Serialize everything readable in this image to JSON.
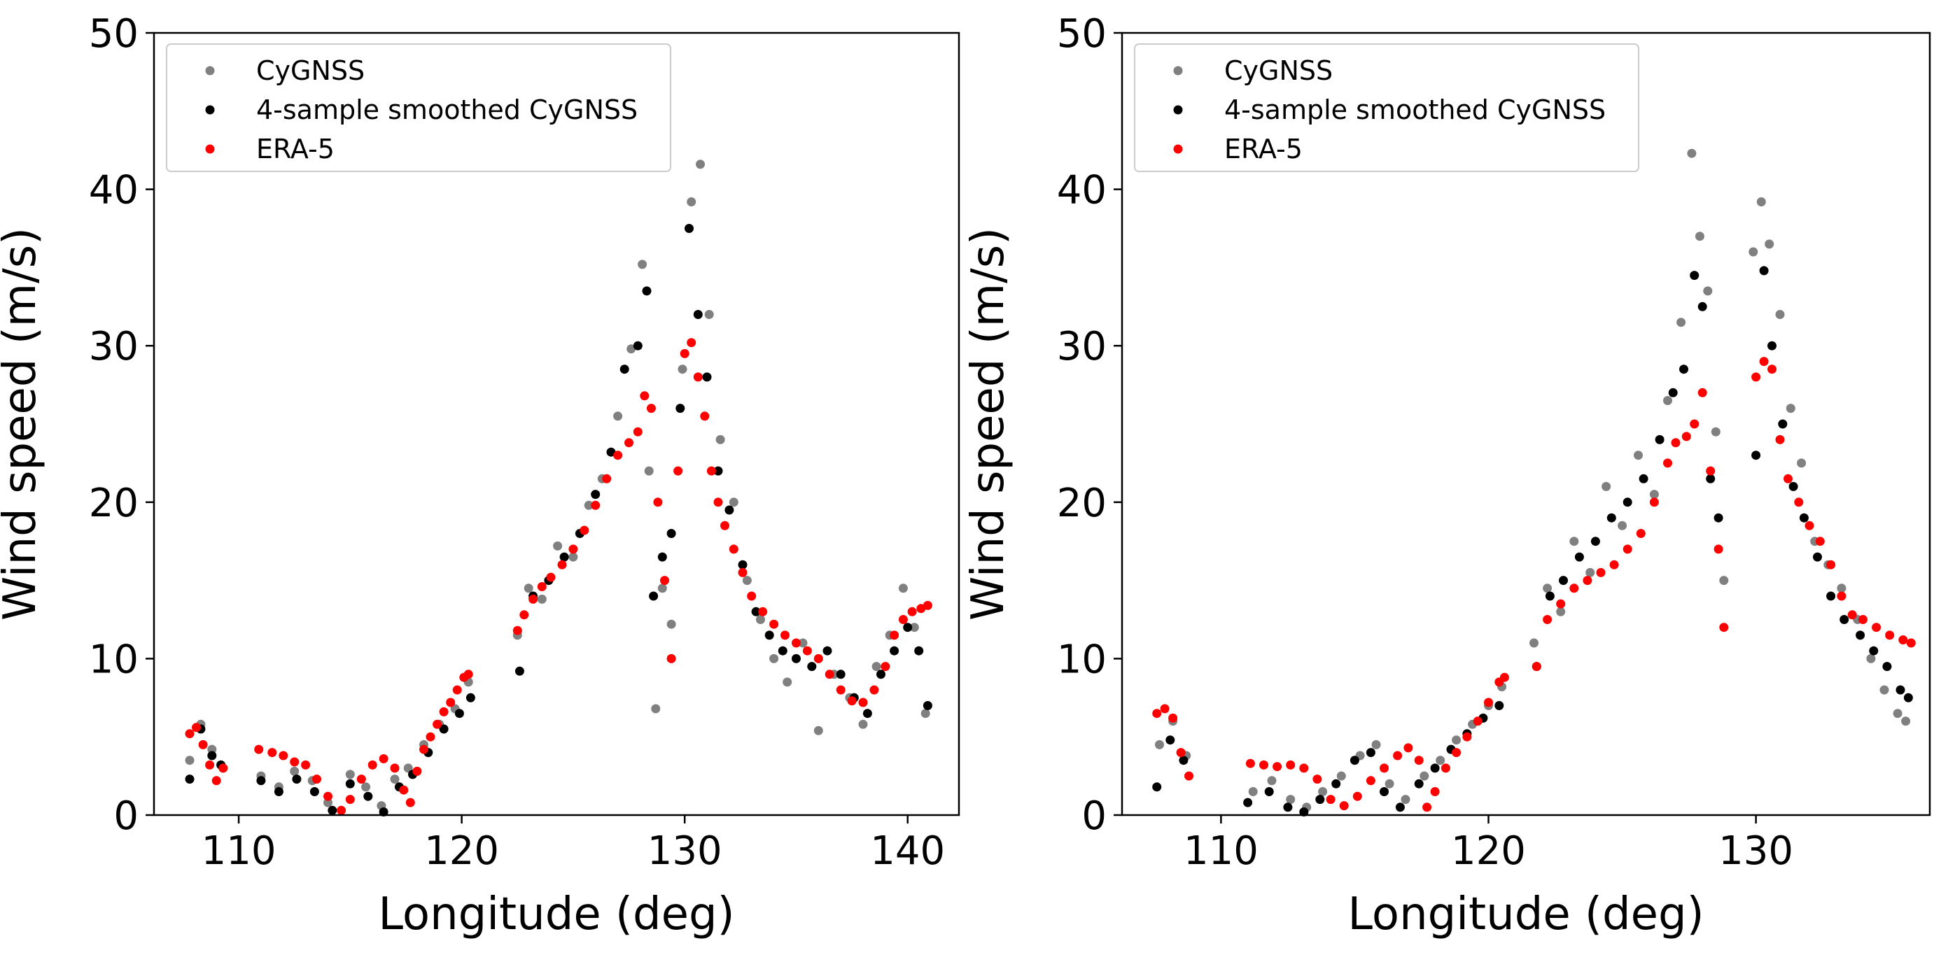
{
  "chart_data": [
    {
      "type": "scatter",
      "xlabel": "Longitude (deg)",
      "ylabel": "Wind speed (m/s)",
      "xlim": [
        106.2,
        142.3
      ],
      "ylim": [
        0,
        50
      ],
      "xticks": [
        110,
        120,
        130,
        140
      ],
      "yticks": [
        0,
        10,
        20,
        30,
        40,
        50
      ],
      "legend_position": "top-left",
      "series": [
        {
          "name": "CyGNSS",
          "color": "#808080",
          "x": [
            107.8,
            108.3,
            108.8,
            109.3,
            111.0,
            111.8,
            112.5,
            113.3,
            114.0,
            115.0,
            115.7,
            116.4,
            117.0,
            117.6,
            118.3,
            119.0,
            119.7,
            120.3,
            122.5,
            123.0,
            123.6,
            124.3,
            125.0,
            125.7,
            126.3,
            127.0,
            127.6,
            128.1,
            128.4,
            128.7,
            129.0,
            129.4,
            129.9,
            130.3,
            130.7,
            131.1,
            131.6,
            132.2,
            132.8,
            133.4,
            134.0,
            134.6,
            135.3,
            136.0,
            136.7,
            137.4,
            138.0,
            138.6,
            139.2,
            139.8,
            140.3,
            140.8
          ],
          "y": [
            3.5,
            5.8,
            4.2,
            3.0,
            2.5,
            1.8,
            2.8,
            2.2,
            0.8,
            2.6,
            1.8,
            0.6,
            2.3,
            3.0,
            4.5,
            5.8,
            6.8,
            8.5,
            11.5,
            14.5,
            13.8,
            17.2,
            16.5,
            19.8,
            21.5,
            25.5,
            29.8,
            35.2,
            22.0,
            6.8,
            14.5,
            12.2,
            28.5,
            39.2,
            41.6,
            32.0,
            24.0,
            20.0,
            15.0,
            12.5,
            10.0,
            8.5,
            11.0,
            5.4,
            9.0,
            7.5,
            5.8,
            9.5,
            11.5,
            14.5,
            12.0,
            6.5
          ]
        },
        {
          "name": "4-sample smoothed CyGNSS",
          "color": "#000000",
          "x": [
            107.8,
            108.3,
            108.8,
            109.2,
            111.0,
            111.8,
            112.6,
            113.4,
            114.2,
            115.0,
            115.8,
            116.5,
            117.2,
            117.8,
            118.5,
            119.2,
            119.9,
            120.4,
            122.6,
            123.2,
            123.9,
            124.6,
            125.3,
            126.0,
            126.7,
            127.3,
            127.9,
            128.3,
            128.6,
            129.0,
            129.4,
            129.8,
            130.2,
            130.6,
            131.0,
            131.5,
            132.0,
            132.6,
            133.2,
            133.8,
            134.4,
            135.0,
            135.7,
            136.4,
            137.0,
            137.6,
            138.2,
            138.8,
            139.4,
            140.0,
            140.5,
            140.9
          ],
          "y": [
            2.3,
            5.5,
            3.8,
            3.2,
            2.2,
            1.5,
            2.3,
            1.5,
            0.3,
            2.0,
            1.2,
            0.2,
            1.8,
            2.6,
            4.0,
            5.5,
            6.5,
            7.5,
            9.2,
            14.0,
            15.0,
            16.5,
            18.0,
            20.5,
            23.2,
            28.5,
            30.0,
            33.5,
            14.0,
            16.5,
            18.0,
            26.0,
            37.5,
            32.0,
            28.0,
            22.0,
            19.5,
            16.0,
            13.0,
            11.5,
            10.5,
            10.0,
            9.5,
            10.5,
            9.0,
            7.5,
            6.5,
            9.0,
            10.5,
            12.0,
            10.5,
            7.0
          ]
        },
        {
          "name": "ERA-5",
          "color": "#ff0000",
          "x": [
            107.8,
            108.1,
            108.4,
            108.7,
            109.0,
            109.3,
            110.9,
            111.5,
            112.0,
            112.5,
            113.0,
            113.5,
            114.0,
            114.6,
            115.0,
            115.5,
            116.0,
            116.5,
            117.0,
            117.4,
            117.7,
            118.0,
            118.3,
            118.6,
            118.9,
            119.2,
            119.5,
            119.8,
            120.1,
            120.3,
            122.5,
            122.8,
            123.2,
            123.6,
            124.0,
            124.5,
            125.0,
            125.5,
            126.0,
            126.5,
            127.0,
            127.5,
            127.9,
            128.2,
            128.5,
            128.8,
            129.1,
            129.4,
            129.7,
            130.0,
            130.3,
            130.6,
            130.9,
            131.2,
            131.5,
            131.8,
            132.2,
            132.6,
            133.0,
            133.5,
            134.0,
            134.5,
            135.0,
            135.5,
            136.0,
            136.5,
            137.0,
            137.5,
            138.0,
            138.5,
            139.0,
            139.4,
            139.8,
            140.2,
            140.6,
            140.9
          ],
          "y": [
            5.2,
            5.6,
            4.5,
            3.2,
            2.2,
            3.0,
            4.2,
            4.0,
            3.8,
            3.4,
            3.2,
            2.3,
            1.2,
            0.3,
            1.0,
            2.3,
            3.2,
            3.6,
            3.0,
            1.6,
            0.8,
            2.8,
            4.2,
            5.0,
            5.8,
            6.6,
            7.2,
            8.0,
            8.8,
            9.0,
            11.8,
            12.8,
            13.8,
            14.6,
            15.2,
            16.0,
            17.0,
            18.2,
            19.8,
            21.5,
            23.0,
            23.8,
            24.5,
            26.8,
            26.0,
            20.0,
            15.0,
            10.0,
            22.0,
            29.5,
            30.2,
            28.0,
            25.5,
            22.0,
            20.0,
            18.5,
            17.0,
            15.5,
            14.0,
            13.0,
            12.2,
            11.5,
            11.0,
            10.5,
            10.0,
            9.0,
            8.0,
            7.3,
            7.2,
            8.0,
            9.5,
            11.5,
            12.5,
            13.0,
            13.2,
            13.4
          ]
        }
      ]
    },
    {
      "type": "scatter",
      "xlabel": "Longitude (deg)",
      "ylabel": "Wind speed (m/s)",
      "xlim": [
        106.3,
        136.5
      ],
      "ylim": [
        0,
        50
      ],
      "xticks": [
        110,
        120,
        130
      ],
      "yticks": [
        0,
        10,
        20,
        30,
        40,
        50
      ],
      "legend_position": "top-left",
      "series": [
        {
          "name": "CyGNSS",
          "color": "#808080",
          "x": [
            107.7,
            108.2,
            108.7,
            111.2,
            111.9,
            112.6,
            113.2,
            113.8,
            114.5,
            115.2,
            115.8,
            116.3,
            116.9,
            117.6,
            118.2,
            118.8,
            119.4,
            120.0,
            120.5,
            121.7,
            122.2,
            122.7,
            123.2,
            123.8,
            124.4,
            125.0,
            125.6,
            126.2,
            126.7,
            127.2,
            127.6,
            127.9,
            128.2,
            128.5,
            128.8,
            129.9,
            130.2,
            130.5,
            130.9,
            131.3,
            131.7,
            132.2,
            132.7,
            133.2,
            133.8,
            134.3,
            134.8,
            135.3,
            135.6
          ],
          "y": [
            4.5,
            6.0,
            3.8,
            1.5,
            2.2,
            1.0,
            0.5,
            1.5,
            2.5,
            3.8,
            4.5,
            2.0,
            1.0,
            2.5,
            3.5,
            4.8,
            5.8,
            7.0,
            8.2,
            11.0,
            14.5,
            13.0,
            17.5,
            15.5,
            21.0,
            18.5,
            23.0,
            20.5,
            26.5,
            31.5,
            42.3,
            37.0,
            33.5,
            24.5,
            15.0,
            36.0,
            39.2,
            36.5,
            32.0,
            26.0,
            22.5,
            17.5,
            16.0,
            14.5,
            12.5,
            10.0,
            8.0,
            6.5,
            6.0
          ]
        },
        {
          "name": "4-sample smoothed CyGNSS",
          "color": "#000000",
          "x": [
            107.6,
            108.1,
            108.6,
            111.0,
            111.8,
            112.5,
            113.1,
            113.7,
            114.3,
            115.0,
            115.6,
            116.1,
            116.7,
            117.4,
            118.0,
            118.6,
            119.2,
            119.8,
            120.4,
            121.8,
            122.3,
            122.8,
            123.4,
            124.0,
            124.6,
            125.2,
            125.8,
            126.4,
            126.9,
            127.3,
            127.7,
            128.0,
            128.3,
            128.6,
            130.0,
            130.3,
            130.6,
            131.0,
            131.4,
            131.8,
            132.3,
            132.8,
            133.3,
            133.9,
            134.4,
            134.9,
            135.4,
            135.7
          ],
          "y": [
            1.8,
            4.8,
            3.5,
            0.8,
            1.5,
            0.5,
            0.2,
            1.0,
            2.0,
            3.5,
            4.0,
            1.5,
            0.5,
            2.0,
            3.0,
            4.2,
            5.2,
            6.2,
            7.0,
            9.5,
            14.0,
            15.0,
            16.5,
            17.5,
            19.0,
            20.0,
            21.5,
            24.0,
            27.0,
            28.5,
            34.5,
            32.5,
            21.5,
            19.0,
            23.0,
            34.8,
            30.0,
            25.0,
            21.0,
            19.0,
            16.5,
            14.0,
            12.5,
            11.5,
            10.5,
            9.5,
            8.0,
            7.5
          ]
        },
        {
          "name": "ERA-5",
          "color": "#ff0000",
          "x": [
            107.6,
            107.9,
            108.2,
            108.5,
            108.8,
            111.1,
            111.6,
            112.1,
            112.6,
            113.1,
            113.6,
            114.1,
            114.6,
            115.1,
            115.6,
            116.1,
            116.6,
            117.0,
            117.4,
            117.7,
            118.0,
            118.4,
            118.8,
            119.2,
            119.6,
            120.0,
            120.4,
            120.6,
            121.8,
            122.2,
            122.7,
            123.2,
            123.7,
            124.2,
            124.7,
            125.2,
            125.7,
            126.2,
            126.7,
            127.0,
            127.4,
            127.7,
            128.0,
            128.3,
            128.6,
            128.8,
            130.0,
            130.3,
            130.6,
            130.9,
            131.2,
            131.6,
            132.0,
            132.4,
            132.8,
            133.2,
            133.6,
            134.0,
            134.5,
            135.0,
            135.5,
            135.8
          ],
          "y": [
            6.5,
            6.8,
            6.2,
            4.0,
            2.5,
            3.3,
            3.2,
            3.1,
            3.2,
            3.0,
            2.3,
            1.0,
            0.6,
            1.2,
            2.2,
            3.0,
            3.8,
            4.3,
            3.5,
            0.5,
            1.5,
            3.0,
            4.0,
            5.0,
            6.0,
            7.2,
            8.5,
            8.8,
            9.5,
            12.5,
            13.5,
            14.5,
            15.0,
            15.5,
            16.0,
            17.0,
            18.0,
            20.0,
            22.5,
            23.8,
            24.2,
            25.0,
            27.0,
            22.0,
            17.0,
            12.0,
            28.0,
            29.0,
            28.5,
            24.0,
            21.5,
            20.0,
            18.5,
            17.5,
            16.0,
            14.0,
            12.8,
            12.5,
            12.0,
            11.5,
            11.2,
            11.0
          ]
        }
      ]
    }
  ]
}
